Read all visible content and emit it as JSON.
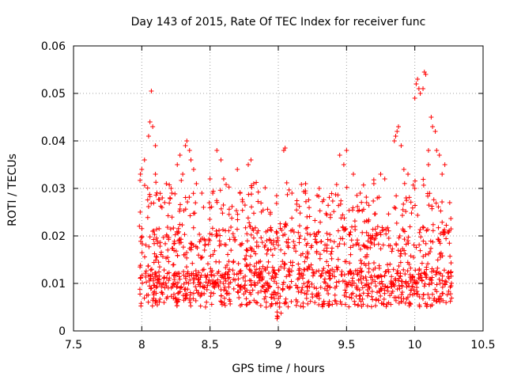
{
  "chart_data": {
    "type": "scatter",
    "title": "Day 143 of 2015, Rate Of TEC Index for receiver func",
    "xlabel": "GPS time / hours",
    "ylabel": "ROTI / TECUs",
    "xlim": [
      7.5,
      10.5
    ],
    "ylim": [
      0,
      0.06
    ],
    "grid": true,
    "marker": "+",
    "xticks": [
      "7.5",
      "8",
      "8.5",
      "9",
      "9.5",
      "10",
      "10.5"
    ],
    "yticks": [
      "0",
      "0.01",
      "0.02",
      "0.03",
      "0.04",
      "0.05",
      "0.06"
    ],
    "series": [
      {
        "name": "ROTI",
        "color": "#ff0000",
        "points": [
          [
            7.99,
            0.033
          ],
          [
            8.0,
            0.034
          ],
          [
            8.02,
            0.036
          ],
          [
            8.05,
            0.041
          ],
          [
            8.06,
            0.044
          ],
          [
            8.07,
            0.0505
          ],
          [
            8.08,
            0.043
          ],
          [
            8.1,
            0.039
          ],
          [
            8.1,
            0.033
          ],
          [
            8.15,
            0.028
          ],
          [
            8.18,
            0.031
          ],
          [
            8.22,
            0.029
          ],
          [
            8.26,
            0.035
          ],
          [
            8.28,
            0.037
          ],
          [
            8.3,
            0.033
          ],
          [
            8.32,
            0.039
          ],
          [
            8.33,
            0.04
          ],
          [
            8.35,
            0.038
          ],
          [
            8.36,
            0.036
          ],
          [
            8.38,
            0.034
          ],
          [
            8.4,
            0.031
          ],
          [
            8.44,
            0.029
          ],
          [
            8.5,
            0.032
          ],
          [
            8.52,
            0.029
          ],
          [
            8.55,
            0.038
          ],
          [
            8.58,
            0.036
          ],
          [
            8.6,
            0.032
          ],
          [
            8.7,
            0.034
          ],
          [
            8.72,
            0.029
          ],
          [
            8.78,
            0.035
          ],
          [
            8.8,
            0.036
          ],
          [
            8.82,
            0.031
          ],
          [
            9.04,
            0.038
          ],
          [
            9.05,
            0.0385
          ],
          [
            9.1,
            0.029
          ],
          [
            9.2,
            0.031
          ],
          [
            9.3,
            0.03
          ],
          [
            9.45,
            0.037
          ],
          [
            9.48,
            0.035
          ],
          [
            9.5,
            0.038
          ],
          [
            9.55,
            0.033
          ],
          [
            9.6,
            0.029
          ],
          [
            9.7,
            0.031
          ],
          [
            9.75,
            0.033
          ],
          [
            9.78,
            0.032
          ],
          [
            9.85,
            0.04
          ],
          [
            9.86,
            0.041
          ],
          [
            9.87,
            0.042
          ],
          [
            9.88,
            0.043
          ],
          [
            9.9,
            0.039
          ],
          [
            9.92,
            0.034
          ],
          [
            9.95,
            0.033
          ],
          [
            10.0,
            0.03
          ],
          [
            10.0,
            0.049
          ],
          [
            10.01,
            0.052
          ],
          [
            10.02,
            0.053
          ],
          [
            10.03,
            0.051
          ],
          [
            10.04,
            0.05
          ],
          [
            10.06,
            0.051
          ],
          [
            10.07,
            0.0545
          ],
          [
            10.08,
            0.054
          ],
          [
            10.1,
            0.038
          ],
          [
            10.1,
            0.035
          ],
          [
            10.12,
            0.045
          ],
          [
            10.13,
            0.043
          ],
          [
            10.15,
            0.042
          ],
          [
            10.16,
            0.038
          ],
          [
            10.18,
            0.037
          ],
          [
            10.2,
            0.033
          ],
          [
            10.22,
            0.035
          ]
        ]
      }
    ]
  }
}
